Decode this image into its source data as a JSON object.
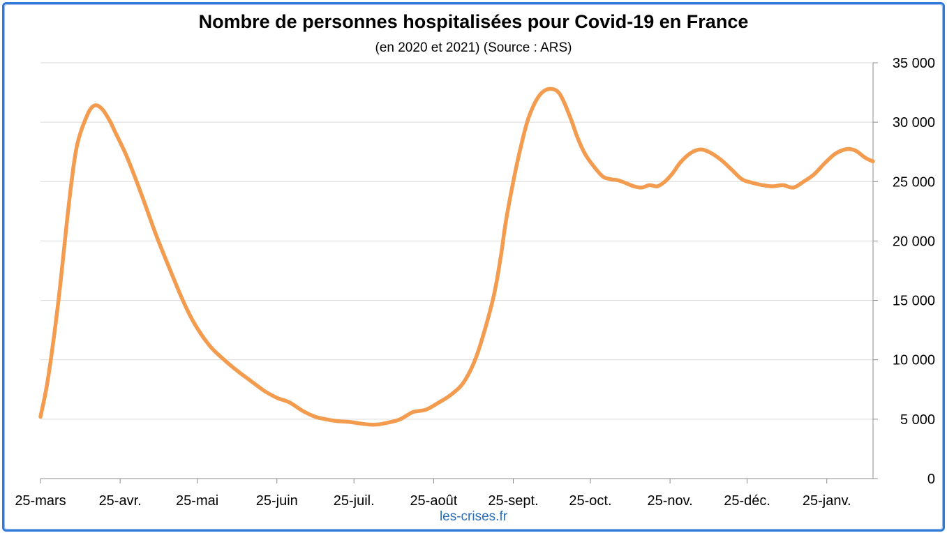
{
  "chart_data": {
    "type": "line",
    "title": "Nombre de personnes hospitalisées pour Covid-19 en France",
    "subtitle": "(en 2020 et 2021) (Source : ARS)",
    "credit": "les-crises.fr",
    "y_axis_side": "right",
    "ylim": [
      0,
      35000
    ],
    "yticks": [
      {
        "value": 0,
        "label": "0"
      },
      {
        "value": 5000,
        "label": "5 000"
      },
      {
        "value": 10000,
        "label": "10 000"
      },
      {
        "value": 15000,
        "label": "15 000"
      },
      {
        "value": 20000,
        "label": "20 000"
      },
      {
        "value": 25000,
        "label": "25 000"
      },
      {
        "value": 30000,
        "label": "30 000"
      },
      {
        "value": 35000,
        "label": "35 000"
      }
    ],
    "xlim": [
      0,
      324
    ],
    "xticks": [
      {
        "value": 0,
        "label": "25-mars"
      },
      {
        "value": 31,
        "label": "25-avr."
      },
      {
        "value": 61,
        "label": "25-mai"
      },
      {
        "value": 92,
        "label": "25-juin"
      },
      {
        "value": 122,
        "label": "25-juil."
      },
      {
        "value": 153,
        "label": "25-août"
      },
      {
        "value": 184,
        "label": "25-sept."
      },
      {
        "value": 214,
        "label": "25-oct."
      },
      {
        "value": 245,
        "label": "25-nov."
      },
      {
        "value": 275,
        "label": "25-déc."
      },
      {
        "value": 306,
        "label": "25-janv."
      }
    ],
    "grid": true,
    "legend": "none",
    "series": [
      {
        "color": "#f39c4f",
        "x": [
          0,
          3,
          7,
          11,
          14,
          18,
          21,
          24,
          27,
          29,
          33,
          36,
          40,
          45,
          50,
          55,
          59,
          63,
          67,
          72,
          77,
          82,
          87,
          92,
          97,
          102,
          107,
          111,
          115,
          118,
          121,
          124,
          128,
          131,
          135,
          140,
          145,
          150,
          155,
          160,
          165,
          170,
          176,
          179,
          181,
          184,
          187,
          190,
          194,
          198,
          202,
          206,
          209,
          212,
          216,
          219,
          222,
          225,
          228,
          231,
          234,
          237,
          240,
          243,
          246,
          249,
          253,
          257,
          261,
          265,
          269,
          273,
          277,
          281,
          285,
          289,
          293,
          297,
          301,
          305,
          309,
          313,
          316,
          318,
          321,
          324
        ],
        "y": [
          5200,
          8500,
          15000,
          23000,
          27800,
          30500,
          31400,
          31100,
          30100,
          29200,
          27400,
          25800,
          23500,
          20500,
          17800,
          15200,
          13400,
          12000,
          10900,
          9900,
          9000,
          8200,
          7400,
          6800,
          6400,
          5700,
          5200,
          5000,
          4850,
          4800,
          4750,
          4650,
          4550,
          4550,
          4700,
          5000,
          5600,
          5800,
          6400,
          7100,
          8200,
          10500,
          15000,
          18500,
          21500,
          25000,
          28000,
          30400,
          32200,
          32800,
          32400,
          30500,
          28700,
          27300,
          26100,
          25400,
          25200,
          25100,
          24850,
          24600,
          24500,
          24700,
          24600,
          25000,
          25700,
          26600,
          27400,
          27700,
          27400,
          26800,
          26000,
          25200,
          24900,
          24700,
          24600,
          24700,
          24500,
          25000,
          25600,
          26500,
          27300,
          27700,
          27700,
          27500,
          27000,
          26700
        ]
      }
    ]
  }
}
